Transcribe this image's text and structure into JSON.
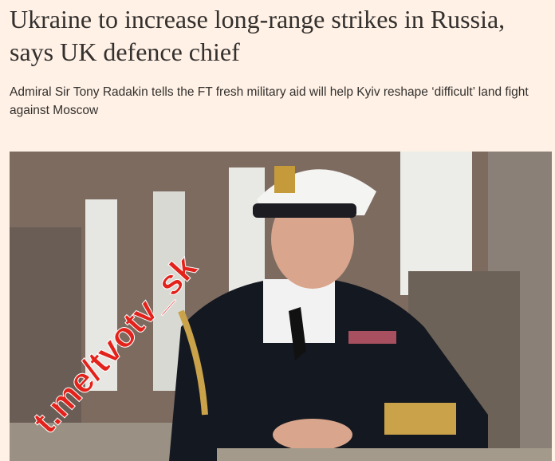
{
  "article": {
    "headline": "Ukraine to increase long-range strikes in Russia, says UK defence chief",
    "standfirst": "Admiral Sir Tony Radakin tells the FT fresh military aid will help Kyiv reshape ‘difficult’ land fight against Moscow",
    "image_alt": "Admiral Sir Tony Radakin in naval uniform"
  },
  "watermark": {
    "text": "t.me/tvotv_sk",
    "color": "#e3221b"
  },
  "colors": {
    "background": "#fff1e5",
    "text": "#33302e"
  }
}
